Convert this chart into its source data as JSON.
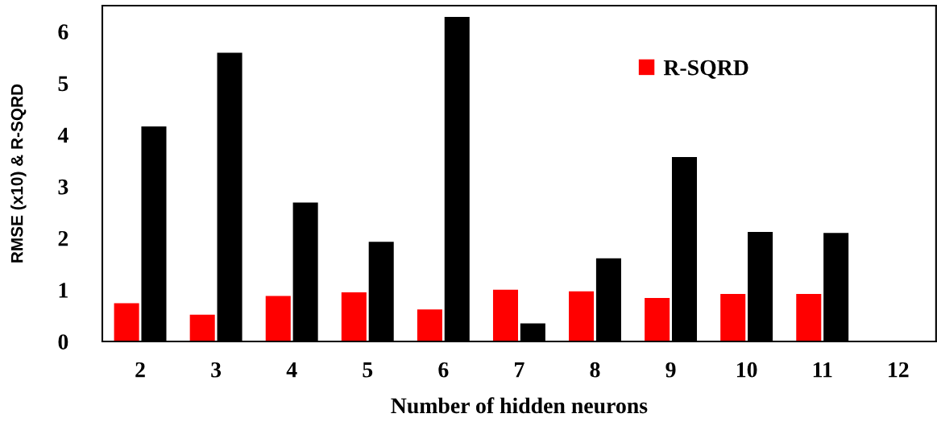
{
  "chart_data": {
    "type": "bar",
    "xlabel": "Number of hidden neurons",
    "ylabel": "RMSE (x10) & R-SQRD",
    "categories": [
      "2",
      "3",
      "4",
      "5",
      "6",
      "7",
      "8",
      "9",
      "10",
      "11",
      "12"
    ],
    "series": [
      {
        "name": "R-SQRD",
        "color": "#ff0000",
        "values": [
          0.74,
          0.52,
          0.88,
          0.95,
          0.62,
          1.0,
          0.97,
          0.84,
          0.92,
          0.92,
          0
        ]
      },
      {
        "color": "#000000",
        "values": [
          4.16,
          5.59,
          2.69,
          1.93,
          6.28,
          0.35,
          1.61,
          3.57,
          2.12,
          2.1,
          0
        ]
      }
    ],
    "ylim": [
      0,
      6.5
    ],
    "yticks": [
      0,
      1,
      2,
      3,
      4,
      5,
      6
    ],
    "grid": false,
    "legend": "top right"
  }
}
